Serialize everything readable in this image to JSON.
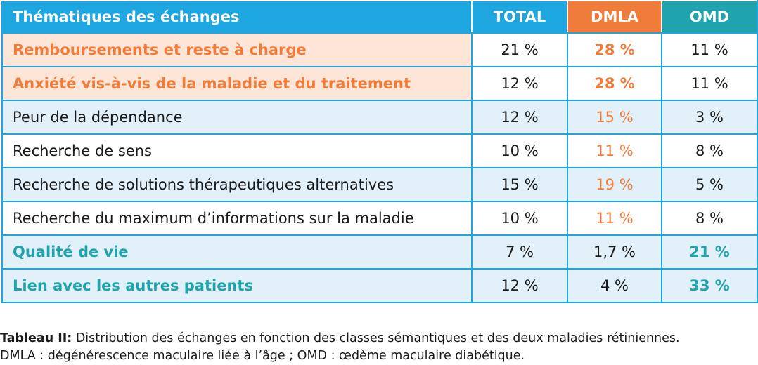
{
  "table": {
    "headers": {
      "theme": "Thématiques des échanges",
      "total": "TOTAL",
      "dmla": "DMLA",
      "omd": "OMD"
    },
    "rows": [
      {
        "label": "Remboursements et reste à charge",
        "total": "21 %",
        "dmla": "28 %",
        "omd": "11 %"
      },
      {
        "label": "Anxiété vis-à-vis de la maladie et du traitement",
        "total": "12 %",
        "dmla": "28 %",
        "omd": "11 %"
      },
      {
        "label": "Peur de la dépendance",
        "total": "12 %",
        "dmla": "15 %",
        "omd": "3 %"
      },
      {
        "label": "Recherche de sens",
        "total": "10 %",
        "dmla": "11 %",
        "omd": "8 %"
      },
      {
        "label": "Recherche de solutions thérapeutiques alternatives",
        "total": "15 %",
        "dmla": "19 %",
        "omd": "5 %"
      },
      {
        "label": "Recherche du maximum d’informations sur la maladie",
        "total": "10 %",
        "dmla": "11 %",
        "omd": "8 %"
      },
      {
        "label": "Qualité de vie",
        "total": "7 %",
        "dmla": "1,7 %",
        "omd": "21 %"
      },
      {
        "label": "Lien avec les autres patients",
        "total": "12 %",
        "dmla": "4 %",
        "omd": "33 %"
      }
    ]
  },
  "caption": {
    "title": "Tableau II:",
    "text": " Distribution des échanges en fonction des classes sémantiques et des deux maladies rétiniennes.",
    "line2": "DMLA : dégénérescence maculaire liée à l’âge ; OMD : œdème maculaire diabétique."
  },
  "colors": {
    "blue": "#1ea6e0",
    "orange": "#f07c3c",
    "teal": "#1fa3ad",
    "peach": "#fde6d8",
    "light_blue": "#e2f1f9"
  }
}
